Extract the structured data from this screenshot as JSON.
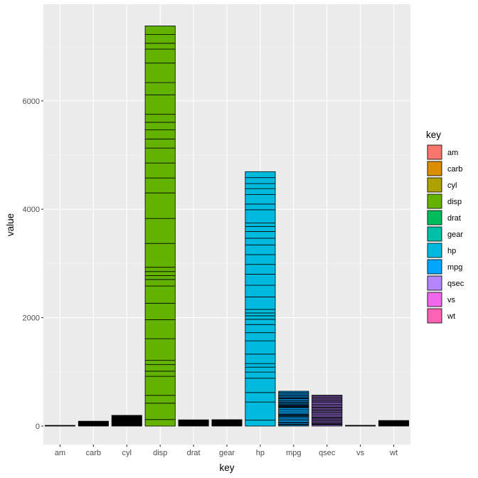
{
  "chart_data": {
    "type": "bar",
    "stacked": true,
    "title": "",
    "xlabel": "key",
    "ylabel": "value",
    "ylim": [
      -320,
      7700
    ],
    "yticks": [
      0,
      2000,
      4000,
      6000
    ],
    "grid": true,
    "legend": {
      "title": "key",
      "position": "right"
    },
    "categories": [
      "am",
      "carb",
      "cyl",
      "disp",
      "drat",
      "gear",
      "hp",
      "mpg",
      "qsec",
      "vs",
      "wt"
    ],
    "colors": {
      "am": "#F8766D",
      "carb": "#DB8E00",
      "cyl": "#AEA200",
      "disp": "#64B200",
      "drat": "#00BD5C",
      "gear": "#00C1A7",
      "hp": "#00BADE",
      "mpg": "#00A6FF",
      "qsec": "#B385FF",
      "vs": "#EF67EB",
      "wt": "#FF63B6"
    },
    "values": [
      13,
      90,
      198,
      7383,
      115,
      118,
      4694,
      643,
      571,
      14,
      103
    ],
    "disp_segments": [
      160,
      160,
      108,
      258,
      360,
      225,
      360,
      146.7,
      140.8,
      167.6,
      167.6,
      275.8,
      275.8,
      275.8,
      472,
      460,
      440,
      78.7,
      75.7,
      71.1,
      120.1,
      318,
      304,
      350,
      400,
      79,
      120.3,
      95.1,
      351,
      145,
      301,
      121
    ],
    "hp_segments": [
      110,
      110,
      93,
      110,
      175,
      105,
      245,
      62,
      95,
      123,
      123,
      180,
      180,
      180,
      205,
      215,
      230,
      66,
      52,
      65,
      97,
      150,
      150,
      245,
      175,
      66,
      91,
      113,
      264,
      175,
      335,
      109
    ],
    "mpg_segments": [
      21,
      21,
      22.8,
      21.4,
      18.7,
      18.1,
      14.3,
      24.4,
      22.8,
      19.2,
      17.8,
      16.4,
      17.3,
      15.2,
      10.4,
      10.4,
      14.7,
      32.4,
      30.4,
      33.9,
      21.5,
      15.5,
      15.2,
      13.3,
      19.2,
      27.3,
      26,
      30.4,
      15.8,
      19.7,
      15,
      21.4
    ],
    "qsec_segments": [
      16.46,
      17.02,
      18.61,
      19.44,
      17.02,
      20.22,
      15.84,
      20,
      22.9,
      18.3,
      18.9,
      17.4,
      17.6,
      18,
      17.98,
      17.82,
      17.42,
      19.47,
      18.52,
      19.9,
      20.01,
      16.87,
      17.3,
      15.41,
      17.05,
      18.9,
      16.7,
      16.9,
      14.5,
      15.5,
      14.6,
      18.6
    ]
  }
}
